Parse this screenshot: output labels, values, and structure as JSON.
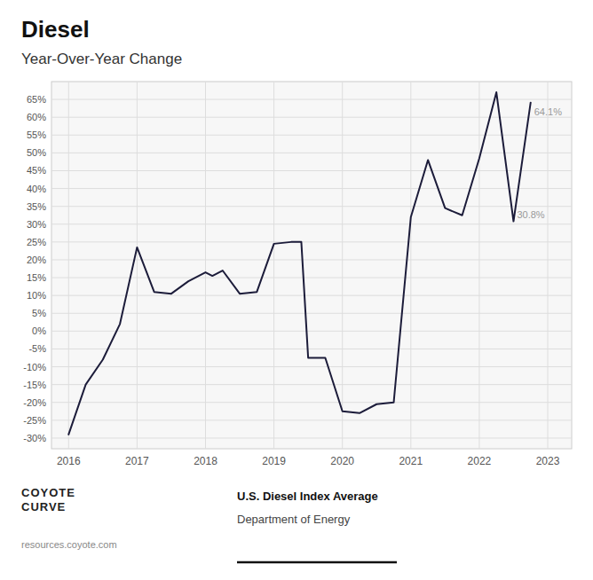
{
  "chart_data": {
    "type": "line",
    "title": "Diesel",
    "subtitle": "Year-Over-Year Change",
    "x": [
      2016.0,
      2016.25,
      2016.5,
      2016.75,
      2017.0,
      2017.25,
      2017.5,
      2017.75,
      2018.0,
      2018.1,
      2018.25,
      2018.5,
      2018.75,
      2019.0,
      2019.25,
      2019.4,
      2019.5,
      2019.75,
      2020.0,
      2020.25,
      2020.5,
      2020.75,
      2021.0,
      2021.25,
      2021.5,
      2021.75,
      2022.0,
      2022.25,
      2022.5,
      2022.75
    ],
    "values": [
      -29.0,
      -15.0,
      -8.0,
      2.0,
      23.5,
      11.0,
      10.5,
      14.0,
      16.5,
      15.5,
      17.0,
      10.5,
      11.0,
      24.5,
      25.0,
      25.0,
      -7.5,
      -7.5,
      -22.5,
      -23.0,
      -20.5,
      -20.0,
      32.0,
      48.0,
      34.5,
      32.5,
      48.5,
      67.0,
      30.8,
      64.1
    ],
    "color": "#1c1c3a",
    "xlim": [
      2015.75,
      2023.35
    ],
    "xticks": [
      2016,
      2017,
      2018,
      2019,
      2020,
      2021,
      2022,
      2023
    ],
    "ylim": [
      -33,
      70
    ],
    "yticks": [
      {
        "value": -30,
        "label": "-30%"
      },
      {
        "value": -25,
        "label": "-25%"
      },
      {
        "value": -20,
        "label": "-20%"
      },
      {
        "value": -15,
        "label": "-15%"
      },
      {
        "value": -10,
        "label": "-10%"
      },
      {
        "value": -5,
        "label": "-5%"
      },
      {
        "value": 0,
        "label": "0%"
      },
      {
        "value": 5,
        "label": "5%"
      },
      {
        "value": 10,
        "label": "10%"
      },
      {
        "value": 15,
        "label": "15%"
      },
      {
        "value": 20,
        "label": "20%"
      },
      {
        "value": 25,
        "label": "25%"
      },
      {
        "value": 30,
        "label": "30%"
      },
      {
        "value": 35,
        "label": "35%"
      },
      {
        "value": 40,
        "label": "40%"
      },
      {
        "value": 45,
        "label": "45%"
      },
      {
        "value": 50,
        "label": "50%"
      },
      {
        "value": 55,
        "label": "55%"
      },
      {
        "value": 60,
        "label": "60%"
      },
      {
        "value": 65,
        "label": "65%"
      }
    ],
    "grid": true,
    "annotations": [
      {
        "text": "64.1%",
        "x": 2022.75,
        "y": 64.1
      },
      {
        "text": "30.8%",
        "x": 2022.5,
        "y": 30.8
      }
    ],
    "source": "U.S. Diesel Index Average",
    "source_detail": "Department of Energy",
    "footer": "resources.coyote.com",
    "logo": [
      "COYOTE",
      "CURVE"
    ]
  }
}
